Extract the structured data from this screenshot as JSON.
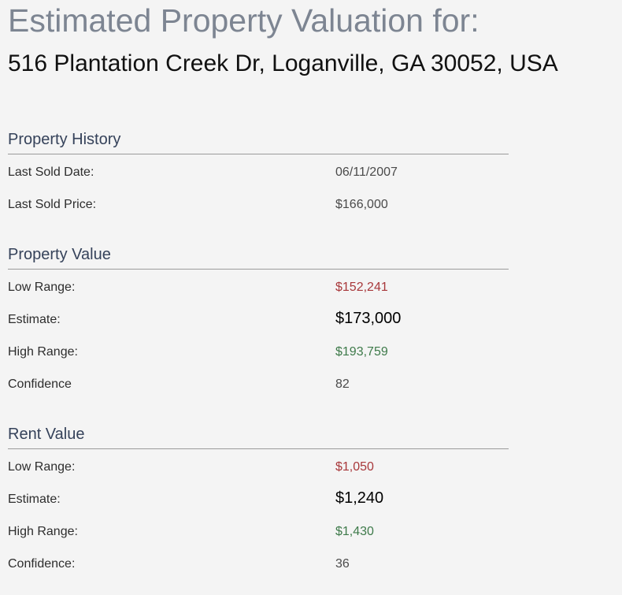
{
  "header": {
    "title": "Estimated Property Valuation for:",
    "address": "516 Plantation Creek Dr, Loganville, GA 30052, USA"
  },
  "property_history": {
    "heading": "Property History",
    "last_sold_date_label": "Last Sold Date:",
    "last_sold_date": "06/11/2007",
    "last_sold_price_label": "Last Sold Price:",
    "last_sold_price": "$166,000"
  },
  "property_value": {
    "heading": "Property Value",
    "low_label": "Low Range:",
    "low": "$152,241",
    "estimate_label": "Estimate:",
    "estimate": "$173,000",
    "high_label": "High Range:",
    "high": "$193,759",
    "confidence_label": "Confidence",
    "confidence": "82"
  },
  "rent_value": {
    "heading": "Rent Value",
    "low_label": "Low Range:",
    "low": "$1,050",
    "estimate_label": "Estimate:",
    "estimate": "$1,240",
    "high_label": "High Range:",
    "high": "$1,430",
    "confidence_label": "Confidence:",
    "confidence": "36"
  },
  "colors": {
    "background": "#f4f4f4",
    "title": "#7d8592",
    "low_range": "#a8383b",
    "high_range": "#3e7a4a"
  }
}
